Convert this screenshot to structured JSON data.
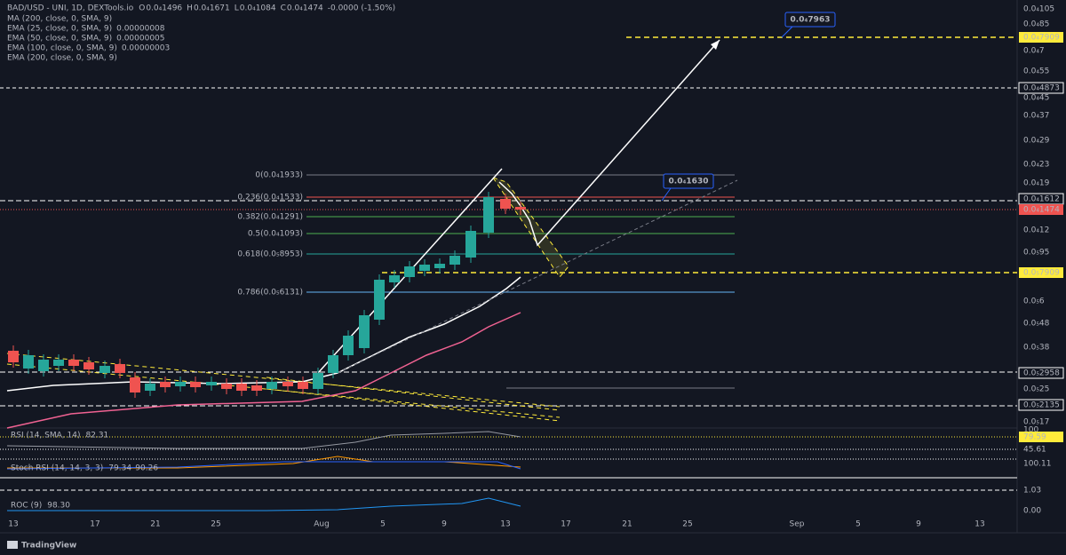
{
  "header": {
    "symbol": "BAD/USD - UNI, 1D, DEXTools.io",
    "ohlc": [
      {
        "label": "O",
        "value": "0.0₄1496"
      },
      {
        "label": "H",
        "value": "0.0₄1671"
      },
      {
        "label": "L",
        "value": "0.0₄1084"
      },
      {
        "label": "C",
        "value": "0.0₄1474"
      }
    ],
    "change": "-0.0000 (-1.50%)"
  },
  "indicators": [
    {
      "name": "MA (200, close, 0, SMA, 9)"
    },
    {
      "name": "EMA (25, close, 0, SMA, 9)",
      "value": "0.00000008"
    },
    {
      "name": "EMA (50, close, 0, SMA, 9)",
      "value": "0.00000005"
    },
    {
      "name": "EMA (100, close, 0, SMA, 9)",
      "value": "0.00000003"
    },
    {
      "name": "EMA (200, close, 0, SMA, 9)"
    }
  ],
  "price_axis": [
    "0.0₄105",
    "0.0₄85",
    "0.0₄7909",
    "0.0₄7",
    "0.0₄55",
    "0.0₄4873",
    "0.0₄45",
    "0.0₄37",
    "0.0₄29",
    "0.0₄23",
    "0.0₄19",
    "0.0₄1612",
    "0.0₄1474",
    "0.0₄12",
    "0.0₅95",
    "0.0₅7909",
    "0.0₅6",
    "0.0₅48",
    "0.0₅38",
    "0.0₅2958",
    "0.0₅25",
    "0.0₅2135",
    "0.0₅17"
  ],
  "time_axis": [
    "13",
    "17",
    "21",
    "25",
    "Aug",
    "5",
    "9",
    "13",
    "17",
    "21",
    "25",
    "Sep",
    "5",
    "9",
    "13"
  ],
  "fib_levels": [
    "0(0.0₄1933)",
    "0.236(0.0₄1533)",
    "0.382(0.0₄1291)",
    "0.5(0.0₄1093)",
    "0.618(0.0₅8953)",
    "0.786(0.0₅6131)"
  ],
  "callouts": [
    "0.0₄7963",
    "0.0₄1630"
  ],
  "panes": [
    {
      "label": "RSI (14, SMA, 14)",
      "values": [
        "82.31"
      ]
    },
    {
      "label": "Stoch RSI (14, 14, 3, 3)",
      "values": [
        "79.34",
        "90.26"
      ]
    },
    {
      "label": "ROC (9)",
      "values": [
        "98.30"
      ]
    }
  ],
  "pane_axis": [
    "100",
    "79.59",
    "45.61",
    "100.11",
    "1.03",
    "0.00"
  ],
  "footer": "TradingView"
}
